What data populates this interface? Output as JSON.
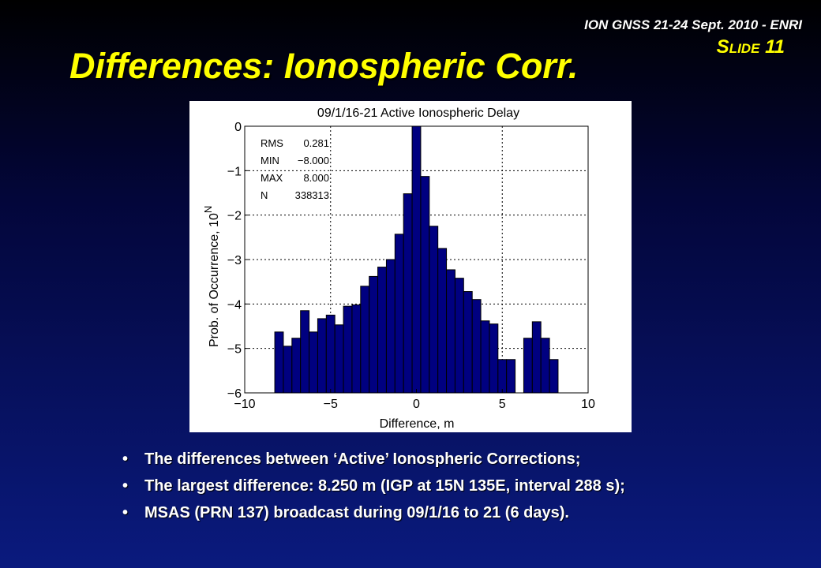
{
  "header": {
    "conference": "ION GNSS 21-24 Sept. 2010 - ENRI",
    "slide_label": "Slide 11"
  },
  "title": "Differences: Ionospheric Corr.",
  "chart_data": {
    "type": "bar",
    "title": "09/1/16-21 Active Ionospheric Delay",
    "xlabel": "Difference, m",
    "ylabel": "Prob. of Occurrence, 10",
    "ylabel_superscript": "N",
    "xlim": [
      -10,
      10
    ],
    "ylim": [
      -6,
      0
    ],
    "x_ticks": [
      -10,
      -5,
      0,
      5,
      10
    ],
    "x_tick_labels": [
      "−10",
      "−5",
      "0",
      "5",
      "10"
    ],
    "y_ticks": [
      0,
      -1,
      -2,
      -3,
      -4,
      -5,
      -6
    ],
    "y_tick_labels": [
      "0",
      "−1",
      "−2",
      "−3",
      "−4",
      "−5",
      "−6"
    ],
    "grid": true,
    "bar_color": "#000080",
    "bar_width": 0.5,
    "bars": [
      {
        "x": -8.0,
        "y": -4.63
      },
      {
        "x": -7.5,
        "y": -4.95
      },
      {
        "x": -7.0,
        "y": -4.77
      },
      {
        "x": -6.5,
        "y": -4.15
      },
      {
        "x": -6.0,
        "y": -4.63
      },
      {
        "x": -5.5,
        "y": -4.33
      },
      {
        "x": -5.0,
        "y": -4.25
      },
      {
        "x": -4.5,
        "y": -4.47
      },
      {
        "x": -4.0,
        "y": -4.05
      },
      {
        "x": -3.5,
        "y": -4.02
      },
      {
        "x": -3.0,
        "y": -3.6
      },
      {
        "x": -2.5,
        "y": -3.38
      },
      {
        "x": -2.0,
        "y": -3.17
      },
      {
        "x": -1.5,
        "y": -3.0
      },
      {
        "x": -1.0,
        "y": -2.43
      },
      {
        "x": -0.5,
        "y": -1.52
      },
      {
        "x": 0.0,
        "y": 0.0
      },
      {
        "x": 0.5,
        "y": -1.13
      },
      {
        "x": 1.0,
        "y": -2.25
      },
      {
        "x": 1.5,
        "y": -2.75
      },
      {
        "x": 2.0,
        "y": -3.23
      },
      {
        "x": 2.5,
        "y": -3.42
      },
      {
        "x": 3.0,
        "y": -3.72
      },
      {
        "x": 3.5,
        "y": -3.9
      },
      {
        "x": 4.0,
        "y": -4.38
      },
      {
        "x": 4.5,
        "y": -4.45
      },
      {
        "x": 5.0,
        "y": -5.25
      },
      {
        "x": 5.5,
        "y": -5.25
      },
      {
        "x": 6.5,
        "y": -4.77
      },
      {
        "x": 7.0,
        "y": -4.4
      },
      {
        "x": 7.5,
        "y": -4.77
      },
      {
        "x": 8.0,
        "y": -5.25
      }
    ],
    "stats": [
      {
        "label": "RMS",
        "value": "0.281"
      },
      {
        "label": "MIN",
        "value": "−8.000"
      },
      {
        "label": "MAX",
        "value": "8.000"
      },
      {
        "label": "N",
        "value": "338313"
      }
    ]
  },
  "bullets": [
    "The differences between ‘Active’ Ionospheric Corrections;",
    "The largest difference: 8.250 m (IGP at 15N 135E, interval 288 s);",
    "MSAS (PRN 137) broadcast during 09/1/16 to 21 (6 days)."
  ],
  "bullet_symbol": "•"
}
